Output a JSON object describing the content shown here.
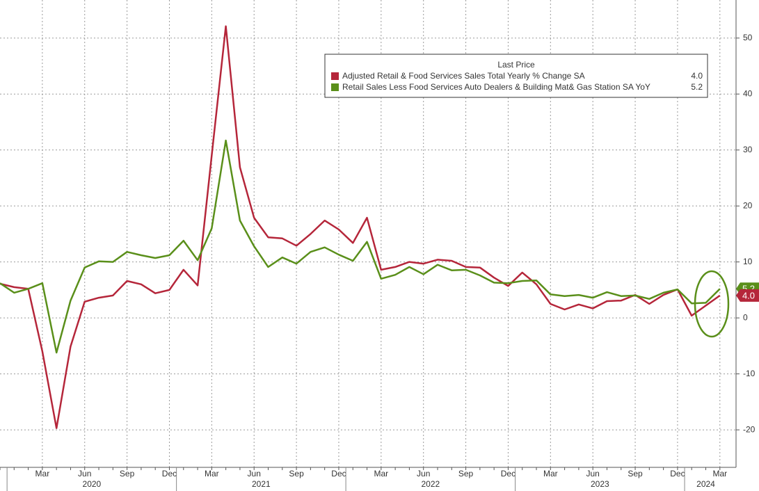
{
  "chart_data": {
    "type": "line",
    "legend_title": "Last Price",
    "categories": [
      null,
      null,
      null,
      "Mar",
      null,
      null,
      "Jun",
      null,
      null,
      "Sep",
      null,
      null,
      "Dec",
      null,
      null,
      "Mar",
      null,
      null,
      "Jun",
      null,
      null,
      "Sep",
      null,
      null,
      "Dec",
      null,
      null,
      "Mar",
      null,
      null,
      "Jun",
      null,
      null,
      "Sep",
      null,
      null,
      "Dec",
      null,
      null,
      "Mar",
      null,
      null,
      "Jun",
      null,
      null,
      "Sep",
      null,
      null,
      "Dec",
      null,
      null,
      "Mar"
    ],
    "years": [
      "2020",
      "2021",
      "2022",
      "2023",
      "2024"
    ],
    "series": [
      {
        "name": "Adjusted Retail & Food Services Sales Total Yearly % Change SA",
        "color": "#b5263a",
        "values": [
          6.1,
          5.5,
          5.2,
          -6.0,
          -19.7,
          -5.1,
          2.9,
          3.6,
          4.0,
          6.6,
          6.0,
          4.4,
          5.0,
          8.6,
          5.8,
          29.0,
          52.1,
          26.9,
          17.9,
          14.4,
          14.2,
          12.9,
          15.0,
          17.4,
          15.8,
          13.4,
          17.9,
          8.6,
          9.1,
          10.0,
          9.7,
          10.4,
          10.2,
          9.1,
          9.0,
          7.2,
          5.7,
          8.1,
          6.0,
          2.5,
          1.5,
          2.4,
          1.7,
          3.0,
          3.1,
          4.1,
          2.5,
          4.1,
          5.1,
          0.4,
          2.2,
          4
        ],
        "value_labels": [
          null,
          null,
          null,
          null,
          null,
          null,
          null,
          null,
          null,
          null,
          null,
          null,
          null,
          null,
          null,
          null,
          null,
          null,
          null,
          null,
          null,
          null,
          null,
          null,
          null,
          null,
          null,
          null,
          null,
          null,
          null,
          null,
          null,
          null,
          null,
          null,
          null,
          null,
          null,
          null,
          null,
          null,
          null,
          null,
          null,
          null,
          null,
          null,
          null,
          null,
          null,
          "4.0"
        ]
      },
      {
        "name": "Retail Sales Less Food Services Auto Dealers & Building Mat& Gas Station SA YoY",
        "color": "#5a8f1a",
        "values": [
          6.2,
          4.5,
          5.2,
          6.2,
          -6.2,
          3.1,
          9.0,
          10.1,
          10.0,
          11.8,
          11.2,
          10.7,
          11.2,
          13.8,
          10.3,
          16.0,
          31.7,
          17.4,
          12.8,
          9.1,
          10.8,
          9.7,
          11.8,
          12.6,
          11.3,
          10.2,
          13.6,
          7.0,
          7.7,
          9.1,
          7.8,
          9.5,
          8.5,
          8.6,
          7.6,
          6.3,
          6.2,
          6.6,
          6.7,
          4.2,
          3.9,
          4.1,
          3.6,
          4.6,
          3.9,
          4.0,
          3.4,
          4.5,
          5.1,
          2.6,
          2.7,
          5.2
        ]
      }
    ],
    "ylim": [
      -26.7,
      56.8
    ],
    "yticks": [
      -20,
      -10,
      0,
      10,
      20,
      30,
      40,
      50
    ],
    "grid": true
  }
}
